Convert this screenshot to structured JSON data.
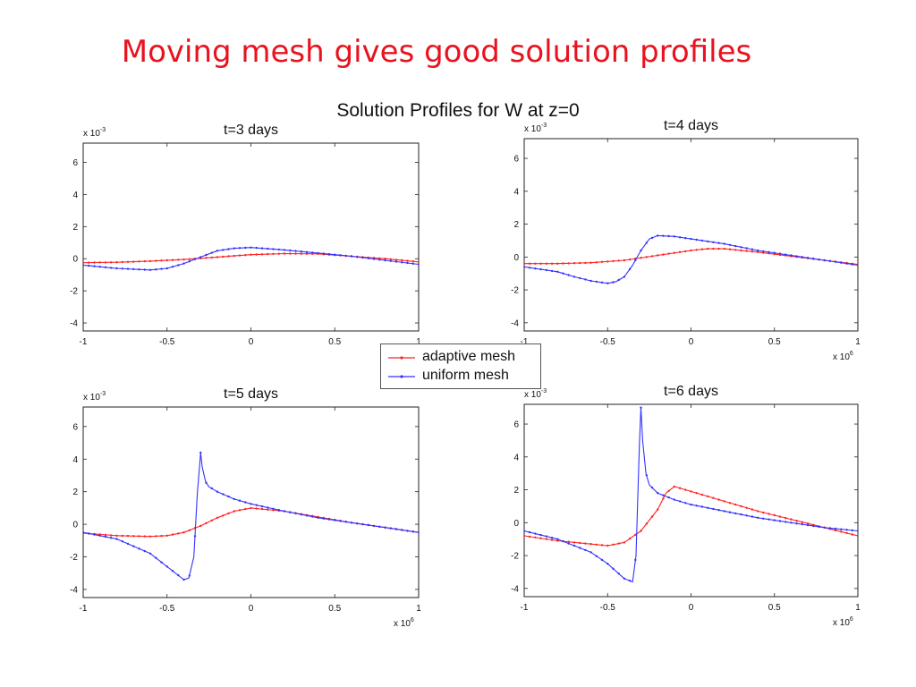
{
  "slide": {
    "title": "Moving mesh gives good solution profiles"
  },
  "figure": {
    "title": "Solution Profiles for W at z=0"
  },
  "legend": {
    "items": [
      {
        "label": "adaptive mesh",
        "color": "#ff2222"
      },
      {
        "label": "uniform mesh",
        "color": "#3333ff"
      }
    ]
  },
  "chart_data": [
    {
      "type": "line",
      "title": "t=3 days",
      "xlim": [
        -1,
        1
      ],
      "ylim": [
        -4.5,
        7.2
      ],
      "x_multiplier_label": "",
      "y_multiplier_label": "x 10^-3",
      "xticks": [
        "-1",
        "-0.5",
        "0",
        "0.5",
        "1"
      ],
      "yticks": [
        "-4",
        "-2",
        "0",
        "2",
        "4",
        "6"
      ],
      "series": [
        {
          "name": "adaptive mesh",
          "color": "#ff2222",
          "x": [
            -1,
            -0.8,
            -0.6,
            -0.4,
            -0.2,
            0,
            0.2,
            0.4,
            0.6,
            0.8,
            1
          ],
          "y": [
            -0.25,
            -0.22,
            -0.15,
            -0.05,
            0.1,
            0.25,
            0.32,
            0.3,
            0.15,
            0,
            -0.2
          ]
        },
        {
          "name": "uniform mesh",
          "color": "#3333ff",
          "x": [
            -1,
            -0.8,
            -0.6,
            -0.5,
            -0.4,
            -0.3,
            -0.2,
            -0.1,
            0,
            0.2,
            0.4,
            0.6,
            0.8,
            1
          ],
          "y": [
            -0.4,
            -0.6,
            -0.7,
            -0.6,
            -0.3,
            0.1,
            0.5,
            0.65,
            0.7,
            0.55,
            0.35,
            0.15,
            -0.1,
            -0.35
          ]
        }
      ]
    },
    {
      "type": "line",
      "title": "t=4 days",
      "xlim": [
        -1,
        1
      ],
      "ylim": [
        -4.5,
        7.2
      ],
      "x_multiplier_label": "x 10^6",
      "y_multiplier_label": "x 10^-3",
      "xticks": [
        "-1",
        "-0.5",
        "0",
        "0.5",
        "1"
      ],
      "yticks": [
        "-4",
        "-2",
        "0",
        "2",
        "4",
        "6"
      ],
      "series": [
        {
          "name": "adaptive mesh",
          "color": "#ff2222",
          "x": [
            -1,
            -0.8,
            -0.6,
            -0.4,
            -0.2,
            0,
            0.1,
            0.2,
            0.4,
            0.6,
            0.8,
            1
          ],
          "y": [
            -0.4,
            -0.4,
            -0.35,
            -0.2,
            0.1,
            0.4,
            0.5,
            0.5,
            0.3,
            0.05,
            -0.2,
            -0.45
          ]
        },
        {
          "name": "uniform mesh",
          "color": "#3333ff",
          "x": [
            -1,
            -0.8,
            -0.7,
            -0.6,
            -0.5,
            -0.45,
            -0.4,
            -0.35,
            -0.3,
            -0.25,
            -0.2,
            -0.1,
            0,
            0.2,
            0.4,
            0.6,
            0.8,
            1
          ],
          "y": [
            -0.6,
            -0.9,
            -1.2,
            -1.45,
            -1.6,
            -1.5,
            -1.2,
            -0.5,
            0.4,
            1.1,
            1.3,
            1.25,
            1.1,
            0.8,
            0.4,
            0.1,
            -0.2,
            -0.5
          ]
        }
      ]
    },
    {
      "type": "line",
      "title": "t=5 days",
      "xlim": [
        -1,
        1
      ],
      "ylim": [
        -4.5,
        7.2
      ],
      "x_multiplier_label": "x 10^6",
      "y_multiplier_label": "x 10^-3",
      "xticks": [
        "-1",
        "-0.5",
        "0",
        "0.5",
        "1"
      ],
      "yticks": [
        "-4",
        "-2",
        "0",
        "2",
        "4",
        "6"
      ],
      "series": [
        {
          "name": "adaptive mesh",
          "color": "#ff2222",
          "x": [
            -1,
            -0.8,
            -0.6,
            -0.5,
            -0.4,
            -0.3,
            -0.2,
            -0.1,
            0,
            0.2,
            0.4,
            0.6,
            0.8,
            1
          ],
          "y": [
            -0.55,
            -0.7,
            -0.75,
            -0.7,
            -0.5,
            -0.1,
            0.4,
            0.8,
            1.0,
            0.8,
            0.45,
            0.1,
            -0.2,
            -0.5
          ]
        },
        {
          "name": "uniform mesh",
          "color": "#3333ff",
          "x": [
            -1,
            -0.8,
            -0.6,
            -0.5,
            -0.45,
            -0.4,
            -0.37,
            -0.34,
            -0.32,
            -0.3,
            -0.29,
            -0.27,
            -0.25,
            -0.2,
            -0.1,
            0,
            0.2,
            0.4,
            0.6,
            0.8,
            1
          ],
          "y": [
            -0.5,
            -0.9,
            -1.8,
            -2.6,
            -3.0,
            -3.4,
            -3.3,
            -2.0,
            1.8,
            4.4,
            3.5,
            2.6,
            2.3,
            2.0,
            1.55,
            1.25,
            0.8,
            0.4,
            0.1,
            -0.2,
            -0.5
          ]
        }
      ]
    },
    {
      "type": "line",
      "title": "t=6 days",
      "xlim": [
        -1,
        1
      ],
      "ylim": [
        -4.5,
        7.2
      ],
      "x_multiplier_label": "x 10^6",
      "y_multiplier_label": "x 10^-3",
      "xticks": [
        "-1",
        "-0.5",
        "0",
        "0.5",
        "1"
      ],
      "yticks": [
        "-4",
        "-2",
        "0",
        "2",
        "4",
        "6"
      ],
      "series": [
        {
          "name": "adaptive mesh",
          "color": "#ff2222",
          "x": [
            -1,
            -0.8,
            -0.6,
            -0.5,
            -0.4,
            -0.3,
            -0.2,
            -0.15,
            -0.1,
            0,
            0.2,
            0.4,
            0.6,
            0.8,
            1
          ],
          "y": [
            -0.8,
            -1.1,
            -1.3,
            -1.4,
            -1.2,
            -0.5,
            0.8,
            1.8,
            2.2,
            1.9,
            1.3,
            0.7,
            0.2,
            -0.3,
            -0.8
          ]
        },
        {
          "name": "uniform mesh",
          "color": "#3333ff",
          "x": [
            -1,
            -0.8,
            -0.6,
            -0.5,
            -0.4,
            -0.35,
            -0.33,
            -0.31,
            -0.3,
            -0.29,
            -0.27,
            -0.25,
            -0.2,
            -0.1,
            0,
            0.2,
            0.4,
            0.6,
            0.8,
            1
          ],
          "y": [
            -0.5,
            -1.0,
            -1.8,
            -2.5,
            -3.4,
            -3.6,
            -2.0,
            4.6,
            7.0,
            5.0,
            3.0,
            2.3,
            1.8,
            1.4,
            1.1,
            0.7,
            0.3,
            0.0,
            -0.3,
            -0.5
          ]
        }
      ]
    }
  ]
}
